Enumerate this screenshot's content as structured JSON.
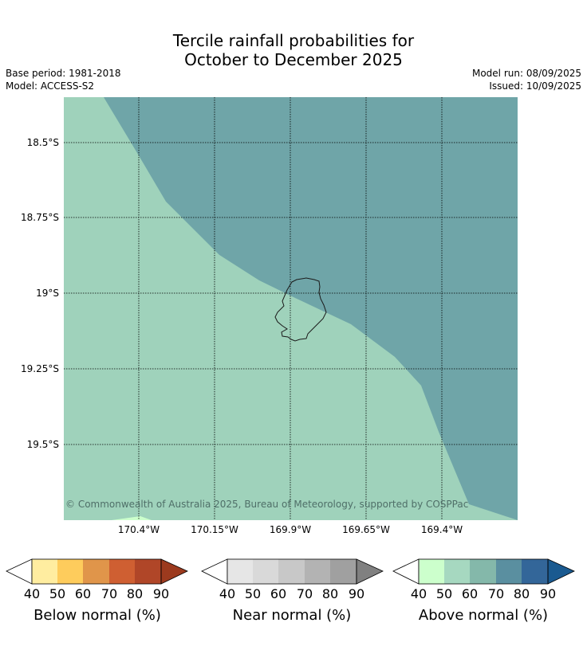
{
  "title_line1": "Tercile rainfall probabilities for",
  "title_line2": "October to December 2025",
  "base_period": "Base period: 1981-2018",
  "model": "Model: ACCESS-S2",
  "model_run": "Model run: 08/09/2025",
  "issued": "Issued: 10/09/2025",
  "copyright": "© Commonwealth of Australia 2025, Bureau of Meteorology, supported by COSPPac",
  "lat_labels": [
    "18.5°S",
    "18.75°S",
    "19°S",
    "19.25°S",
    "19.5°S"
  ],
  "lon_labels": [
    "170.4°W",
    "170.15°W",
    "169.9°W",
    "169.65°W",
    "169.4°W"
  ],
  "map_colors": {
    "above_50_60": "#9fd2bb",
    "above_70_80": "#6fa5a8",
    "above_40_50": "#ccffcc",
    "coastline": "#1a1a1a",
    "grid": "#000000"
  },
  "colorbars": [
    {
      "title": "Below normal (%)",
      "ticks": [
        "40",
        "50",
        "60",
        "70",
        "80",
        "90"
      ],
      "under": "#ffffff",
      "colors": [
        "#ffeda0",
        "#fecc5c",
        "#e0954a",
        "#cf5f32",
        "#b04628"
      ],
      "over": "#9c3a1e"
    },
    {
      "title": "Near normal (%)",
      "ticks": [
        "40",
        "50",
        "60",
        "70",
        "80",
        "90"
      ],
      "under": "#ffffff",
      "colors": [
        "#e6e6e6",
        "#d9d9d9",
        "#c8c8c8",
        "#b3b3b3",
        "#a0a0a0"
      ],
      "over": "#808080"
    },
    {
      "title": "Above normal (%)",
      "ticks": [
        "40",
        "50",
        "60",
        "70",
        "80",
        "90"
      ],
      "under": "#ffffff",
      "colors": [
        "#ccffcc",
        "#a6d8c0",
        "#84b8aa",
        "#5a8fa0",
        "#336699"
      ],
      "over": "#1a5a90"
    }
  ]
}
